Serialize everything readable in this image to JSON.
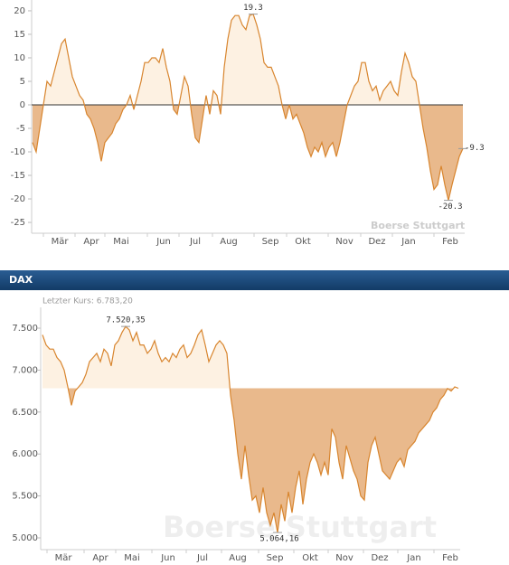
{
  "chart_data": [
    {
      "type": "area",
      "values": [
        -8,
        -10,
        -5,
        0,
        5,
        4,
        7,
        10,
        13,
        14,
        10,
        6,
        4,
        2,
        1,
        -2,
        -3,
        -5,
        -8,
        -12,
        -8,
        -7,
        -6,
        -4,
        -3,
        -1,
        0,
        2,
        -1,
        2,
        5,
        9,
        9,
        10,
        10,
        9,
        12,
        8,
        5,
        -1,
        -2,
        2,
        6,
        4,
        -2,
        -7,
        -8,
        -3,
        2,
        -2,
        3,
        2,
        -2,
        8,
        14,
        18,
        19,
        19,
        17,
        16,
        19,
        19.3,
        17,
        14,
        9,
        8,
        8,
        6,
        4,
        0,
        -3,
        0,
        -3,
        -2,
        -4,
        -6,
        -9,
        -11,
        -9,
        -10,
        -8,
        -11,
        -9,
        -8,
        -11,
        -8,
        -4,
        0,
        2,
        4,
        5,
        9,
        9,
        5,
        3,
        4,
        1,
        3,
        4,
        5,
        3,
        2,
        7,
        11,
        9,
        6,
        5,
        0,
        -5,
        -9,
        -14,
        -18,
        -17,
        -13,
        -17,
        -20.3,
        -17,
        -14,
        -11,
        -9.3
      ],
      "xlim": [
        0,
        119
      ],
      "xticks": [
        {
          "value": 7.5,
          "label": "Mär"
        },
        {
          "value": 16.25,
          "label": "Apr"
        },
        {
          "value": 24.5,
          "label": "Mai"
        },
        {
          "value": 36.25,
          "label": "Jun"
        },
        {
          "value": 45,
          "label": "Jul"
        },
        {
          "value": 54.25,
          "label": "Aug"
        },
        {
          "value": 65.75,
          "label": "Sep"
        },
        {
          "value": 74.75,
          "label": "Okt"
        },
        {
          "value": 86.25,
          "label": "Nov"
        },
        {
          "value": 95.25,
          "label": "Dez"
        },
        {
          "value": 104,
          "label": "Jan"
        },
        {
          "value": 115.5,
          "label": "Feb"
        }
      ],
      "ylim": [
        -27.3,
        22.3
      ],
      "yticks": [
        -25,
        -20,
        -15,
        -10,
        -5,
        0,
        5,
        10,
        15,
        20
      ],
      "baseline": 0,
      "color": "#d8852e",
      "fill_above": "#fdf1e2",
      "fill_below": "#e9b98c",
      "annotations": [
        {
          "value": 19.3,
          "label": "19.3",
          "side": "above"
        },
        {
          "value": -20.3,
          "label": "-20.3",
          "side": "below"
        },
        {
          "value": -9.3,
          "label": "-9.3",
          "side": "right"
        }
      ],
      "watermark": "Boerse Stuttgart"
    },
    {
      "type": "area",
      "title": "DAX",
      "subtitle": "Letzter Kurs: 6.783,20",
      "values": [
        7420,
        7300,
        7250,
        7250,
        7150,
        7100,
        7000,
        6800,
        6580,
        6750,
        6800,
        6850,
        6950,
        7100,
        7150,
        7200,
        7100,
        7250,
        7200,
        7050,
        7300,
        7350,
        7450,
        7520.35,
        7480,
        7350,
        7450,
        7300,
        7300,
        7200,
        7250,
        7350,
        7200,
        7100,
        7150,
        7100,
        7200,
        7150,
        7250,
        7300,
        7150,
        7200,
        7300,
        7420,
        7480,
        7300,
        7100,
        7200,
        7300,
        7350,
        7300,
        7200,
        6700,
        6400,
        6000,
        5700,
        6100,
        5750,
        5450,
        5500,
        5300,
        5600,
        5300,
        5150,
        5300,
        5064.16,
        5400,
        5200,
        5550,
        5300,
        5600,
        5800,
        5400,
        5700,
        5900,
        6000,
        5900,
        5750,
        5900,
        5750,
        6300,
        6200,
        5900,
        5700,
        6100,
        5950,
        5800,
        5700,
        5500,
        5450,
        5900,
        6100,
        6200,
        6000,
        5800,
        5750,
        5700,
        5800,
        5900,
        5950,
        5850,
        6050,
        6100,
        6150,
        6250,
        6300,
        6350,
        6400,
        6500,
        6550,
        6650,
        6700,
        6780,
        6750,
        6800,
        6783.2
      ],
      "xlim": [
        0,
        115
      ],
      "xticks": [
        {
          "value": 5.75,
          "label": "Mär"
        },
        {
          "value": 16,
          "label": "Apr"
        },
        {
          "value": 24.75,
          "label": "Mai"
        },
        {
          "value": 34.75,
          "label": "Jun"
        },
        {
          "value": 44.25,
          "label": "Jul"
        },
        {
          "value": 54,
          "label": "Aug"
        },
        {
          "value": 64.25,
          "label": "Sep"
        },
        {
          "value": 74,
          "label": "Okt"
        },
        {
          "value": 83.5,
          "label": "Nov"
        },
        {
          "value": 93.25,
          "label": "Dez"
        },
        {
          "value": 102.75,
          "label": "Jan"
        },
        {
          "value": 112.75,
          "label": "Feb"
        }
      ],
      "ylim": [
        4860,
        7748
      ],
      "yticks": [
        {
          "value": 5000,
          "label": "5.000"
        },
        {
          "value": 5500,
          "label": "5.500"
        },
        {
          "value": 6000,
          "label": "6.000"
        },
        {
          "value": 6500,
          "label": "6.500"
        },
        {
          "value": 7000,
          "label": "7.000"
        },
        {
          "value": 7500,
          "label": "7.500"
        }
      ],
      "baseline": 6783.2,
      "color": "#d8852e",
      "fill_above": "#fdf1e2",
      "fill_below": "#e9b98c",
      "annotations": [
        {
          "value": 7520.35,
          "label": "7.520,35",
          "side": "above"
        },
        {
          "value": 5064.16,
          "label": "5.064,16",
          "side": "below"
        }
      ],
      "watermark": "Boerse Stuttgart"
    }
  ]
}
